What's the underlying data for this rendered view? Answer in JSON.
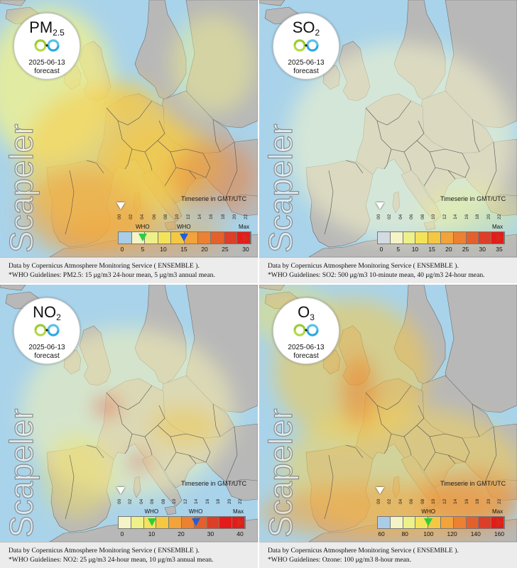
{
  "timeserie_label": "Timeserie in GMT/UTC",
  "watermark": "Scapeler",
  "forecast_label": "forecast",
  "date": "2025-06-13",
  "hour_labels": [
    "00",
    "02",
    "04",
    "06",
    "08",
    "10",
    "12",
    "14",
    "16",
    "18",
    "20",
    "22"
  ],
  "data_credit": "Data by Copernicus Atmosphere Monitoring Service ( ENSEMBLE ).",
  "who_label": "WHO",
  "max_label": "Max",
  "colors": {
    "sea": "#a9d3ea",
    "land": "#b8b8b8",
    "border": "#555555",
    "who_24h_marker": "#2ecc40",
    "who_annual_marker": "#1f5fd6",
    "who_marker_o3": "#2ecc40",
    "max_marker": "#d62a1a"
  },
  "panels": [
    {
      "pollutant": "PM",
      "pollutant_sub": "2.5",
      "guidelines": "*WHO Guidelines: PM2.5: 15 μg/m3 24-hour mean, 5 μg/m3 annual mean.",
      "scale_ticks": [
        "0",
        "5",
        "10",
        "15",
        "20",
        "25",
        "30"
      ],
      "swatches": [
        "#a9cde6",
        "#f4f4c6",
        "#eef08a",
        "#f3e35a",
        "#f5c842",
        "#f2a33a",
        "#ec8132",
        "#e4602b",
        "#dd3e27",
        "#e41b1b"
      ],
      "overlay": "pm25",
      "who_markers": [
        {
          "label": "WHO",
          "value": 5,
          "color": "#2ecc40"
        },
        {
          "label": "WHO",
          "value": 15,
          "color": "#1f5fd6"
        }
      ]
    },
    {
      "pollutant": "SO",
      "pollutant_sub": "2",
      "guidelines": "*WHO Guidelines: SO2: 500 μg/m3 10-minute mean, 40 μg/m3 24-hour mean.",
      "scale_ticks": [
        "0",
        "5",
        "10",
        "15",
        "20",
        "25",
        "30",
        "35"
      ],
      "swatches": [
        "#d2dbe2",
        "#f4f4c6",
        "#eef08a",
        "#f3e35a",
        "#f5c842",
        "#f2a33a",
        "#ec8132",
        "#e4602b",
        "#dd3e27",
        "#e41b1b"
      ],
      "overlay": "so2",
      "who_markers": []
    },
    {
      "pollutant": "NO",
      "pollutant_sub": "2",
      "guidelines": "*WHO Guidelines: NO2: 25 μg/m3 24-hour mean, 10 μg/m3 annual mean.",
      "scale_ticks": [
        "0",
        "10",
        "20",
        "30",
        "40"
      ],
      "swatches": [
        "#f4f4c6",
        "#eef08a",
        "#f3e35a",
        "#f5c842",
        "#f2a33a",
        "#ec8132",
        "#e4602b",
        "#dd3e27",
        "#e41b1b",
        "#e41b1b"
      ],
      "overlay": "no2",
      "who_markers": [
        {
          "label": "WHO",
          "value": 10,
          "color": "#2ecc40"
        },
        {
          "label": "WHO",
          "value": 25,
          "color": "#1f5fd6"
        }
      ]
    },
    {
      "pollutant": "O",
      "pollutant_sub": "3",
      "guidelines": "*WHO Guidelines: Ozone: 100 μg/m3 8-hour mean.",
      "scale_ticks": [
        "60",
        "80",
        "100",
        "120",
        "140",
        "160"
      ],
      "swatches": [
        "#a9cde6",
        "#f4f4c6",
        "#eef08a",
        "#f3e35a",
        "#f5c842",
        "#f2a33a",
        "#ec8132",
        "#e4602b",
        "#dd3e27",
        "#e41b1b"
      ],
      "overlay": "o3",
      "who_markers": [
        {
          "label": "WHO",
          "value": 100,
          "color": "#2ecc40"
        }
      ]
    }
  ]
}
